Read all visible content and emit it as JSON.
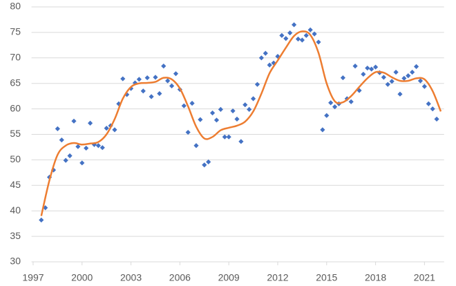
{
  "chart_data": {
    "type": "scatter",
    "xlim": [
      1996.9,
      2022.2
    ],
    "xticks": [
      1997,
      2000,
      2003,
      2006,
      2009,
      2012,
      2015,
      2018,
      2021
    ],
    "ylim": [
      30,
      80
    ],
    "yticks": [
      30,
      35,
      40,
      45,
      50,
      55,
      60,
      65,
      70,
      75,
      80
    ],
    "grid": true,
    "series": [
      {
        "type": "scatter",
        "color": "#4472c4",
        "x": [
          1997.5,
          1997.75,
          1998,
          1998.25,
          1998.5,
          1998.75,
          1999,
          1999.25,
          1999.5,
          1999.75,
          2000,
          2000.25,
          2000.5,
          2000.75,
          2001,
          2001.25,
          2001.5,
          2001.75,
          2002,
          2002.25,
          2002.5,
          2002.75,
          2003,
          2003.25,
          2003.5,
          2003.75,
          2004,
          2004.25,
          2004.5,
          2004.75,
          2005,
          2005.25,
          2005.5,
          2005.75,
          2006,
          2006.25,
          2006.5,
          2006.75,
          2007,
          2007.25,
          2007.5,
          2007.75,
          2008,
          2008.25,
          2008.5,
          2008.75,
          2009,
          2009.25,
          2009.5,
          2009.75,
          2010,
          2010.25,
          2010.5,
          2010.75,
          2011,
          2011.25,
          2011.5,
          2011.75,
          2012,
          2012.25,
          2012.5,
          2012.75,
          2013,
          2013.25,
          2013.5,
          2013.75,
          2014,
          2014.25,
          2014.5,
          2014.75,
          2015,
          2015.25,
          2015.5,
          2015.75,
          2016,
          2016.25,
          2016.5,
          2016.75,
          2017,
          2017.25,
          2017.5,
          2017.75,
          2018,
          2018.25,
          2018.5,
          2018.75,
          2019,
          2019.25,
          2019.5,
          2019.75,
          2020,
          2020.25,
          2020.5,
          2020.75,
          2021,
          2021.25,
          2021.5,
          2021.75
        ],
        "values": [
          38.2,
          40.6,
          46.6,
          48,
          56.1,
          53.9,
          49.9,
          50.8,
          57.6,
          52.6,
          49.4,
          52.3,
          57.2,
          53,
          52.8,
          52.4,
          56.2,
          56.7,
          55.9,
          61,
          65.9,
          62.8,
          64,
          65.1,
          65.8,
          63.5,
          66.1,
          62.4,
          66.2,
          63,
          68.4,
          65.5,
          64.5,
          66.9,
          63.8,
          60.6,
          55.4,
          61.1,
          52.8,
          57.9,
          49,
          49.6,
          59.2,
          57.8,
          59.9,
          54.5,
          54.5,
          59.6,
          58,
          53.6,
          60.8,
          59.9,
          62,
          64.8,
          70,
          70.9,
          68.6,
          69,
          70.3,
          74.4,
          73.8,
          74.9,
          76.5,
          73.7,
          73.5,
          74.4,
          75.5,
          74.7,
          73.1,
          55.9,
          58.7,
          61.2,
          60.4,
          61,
          66.1,
          62,
          61.4,
          68.4,
          63.6,
          66.8,
          68,
          67.8,
          68.2,
          67.1,
          66.2,
          64.8,
          65.4,
          67.2,
          62.9,
          66,
          66.5,
          67.2,
          68.3,
          65.5,
          64.4,
          61,
          60,
          58
        ]
      },
      {
        "type": "line",
        "color": "#ed7d31",
        "x": [
          1997.5,
          1998,
          1998.5,
          1999,
          1999.5,
          2000,
          2000.5,
          2001,
          2001.5,
          2002,
          2002.5,
          2003,
          2003.5,
          2004,
          2004.5,
          2005,
          2005.5,
          2006,
          2006.5,
          2007,
          2007.5,
          2008,
          2008.5,
          2009,
          2009.5,
          2010,
          2010.5,
          2011,
          2011.5,
          2012,
          2012.5,
          2013,
          2013.5,
          2014,
          2014.5,
          2015,
          2015.5,
          2016,
          2016.5,
          2017,
          2017.5,
          2018,
          2018.5,
          2019,
          2019.5,
          2020,
          2020.5,
          2021,
          2021.5,
          2022
        ],
        "values": [
          39,
          46,
          51,
          52.8,
          53.3,
          53,
          53.2,
          53.5,
          55,
          58,
          62,
          64.3,
          65,
          65.1,
          65.3,
          66.1,
          65.8,
          64,
          60.5,
          56.5,
          54.2,
          54.5,
          55.8,
          56.3,
          56.7,
          57.5,
          59.5,
          63,
          67,
          69.5,
          72,
          74.3,
          75.2,
          74.5,
          71,
          65,
          61.5,
          61.3,
          62.5,
          64.3,
          66,
          67.2,
          67.1,
          66.2,
          65.5,
          65.5,
          66,
          65.8,
          63.5,
          59.5
        ]
      }
    ]
  }
}
